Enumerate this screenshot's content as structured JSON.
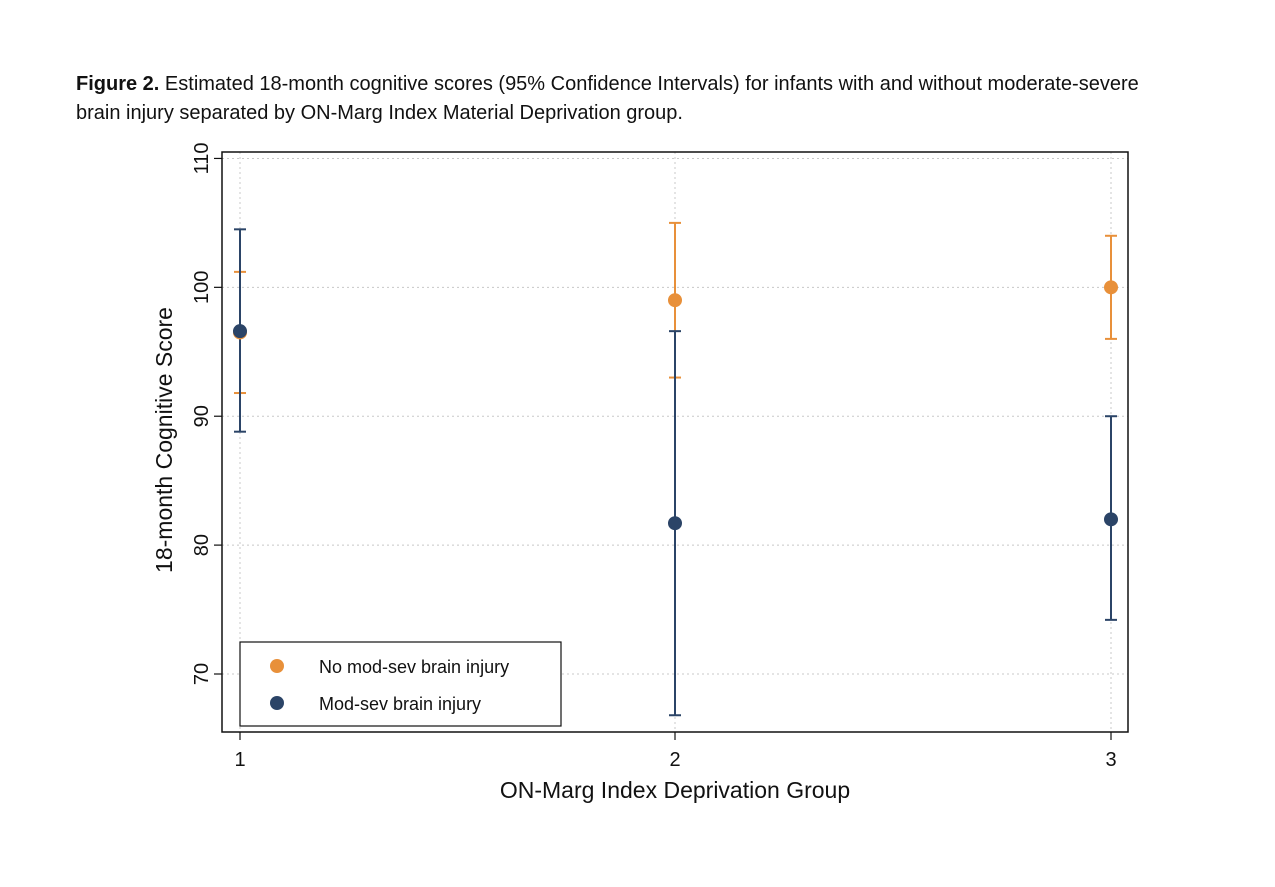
{
  "caption": {
    "label": "Figure 2.",
    "text": " Estimated 18-month cognitive scores (95% Confidence Intervals) for infants with and without moderate-severe brain injury separated by ON-Marg Index Material Deprivation group."
  },
  "chart_data": {
    "type": "scatter",
    "xlabel": "ON-Marg Index Deprivation Group",
    "ylabel": "18-month Cognitive Score",
    "categories": [
      "1",
      "2",
      "3"
    ],
    "ylim": [
      65.5,
      110.5
    ],
    "yticks": [
      70,
      80,
      90,
      100,
      110
    ],
    "grid": true,
    "legend_position": "bottom-left",
    "series": [
      {
        "name": "No mod-sev brain injury",
        "color": "#E8903A",
        "values": [
          96.5,
          99,
          100
        ],
        "ci_low": [
          91.8,
          93,
          96
        ],
        "ci_high": [
          101.2,
          105,
          104
        ]
      },
      {
        "name": "Mod-sev brain injury",
        "color": "#2B4467",
        "values": [
          96.6,
          81.7,
          82
        ],
        "ci_low": [
          88.8,
          66.8,
          74.2
        ],
        "ci_high": [
          104.5,
          96.6,
          90
        ]
      }
    ]
  }
}
